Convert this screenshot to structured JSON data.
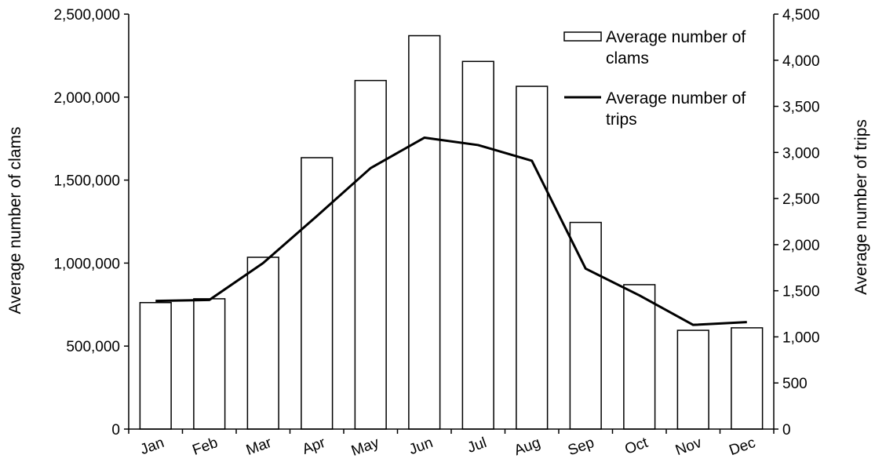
{
  "chart_data": {
    "type": "bar",
    "categories": [
      "Jan",
      "Feb",
      "Mar",
      "Apr",
      "May",
      "Jun",
      "Jul",
      "Aug",
      "Sep",
      "Oct",
      "Nov",
      "Dec"
    ],
    "series": [
      {
        "name": "Average number of clams",
        "type": "bar",
        "axis": "left",
        "values": [
          762000,
          785000,
          1035000,
          1635000,
          2100000,
          2370000,
          2215000,
          2065000,
          1245000,
          870000,
          595000,
          610000
        ]
      },
      {
        "name": "Average number of trips",
        "type": "line",
        "axis": "right",
        "values": [
          1390,
          1400,
          1800,
          2310,
          2830,
          3160,
          3080,
          2910,
          1740,
          1450,
          1130,
          1160
        ]
      }
    ],
    "legend": {
      "position": "top-right",
      "entries": [
        {
          "lines": [
            "Average number of",
            "clams"
          ],
          "marker": "bar"
        },
        {
          "lines": [
            "Average number of",
            "trips"
          ],
          "marker": "line"
        }
      ]
    },
    "y_left": {
      "label": "Average number  of clams",
      "ylim": [
        0,
        2500000
      ],
      "ticks": [
        "0",
        "500,000",
        "1,000,000",
        "1,500,000",
        "2,000,000",
        "2,500,000"
      ]
    },
    "y_right": {
      "label": "Average number  of trips",
      "ylim": [
        0,
        4500
      ],
      "ticks": [
        "0",
        "500",
        "1,000",
        "1,500",
        "2,000",
        "2,500",
        "3,000",
        "3,500",
        "4,000",
        "4,500"
      ]
    },
    "grid": false,
    "colors": {
      "bar_fill": "#ffffff",
      "bar_stroke": "#000000",
      "line": "#000000",
      "axis": "#000000"
    }
  }
}
